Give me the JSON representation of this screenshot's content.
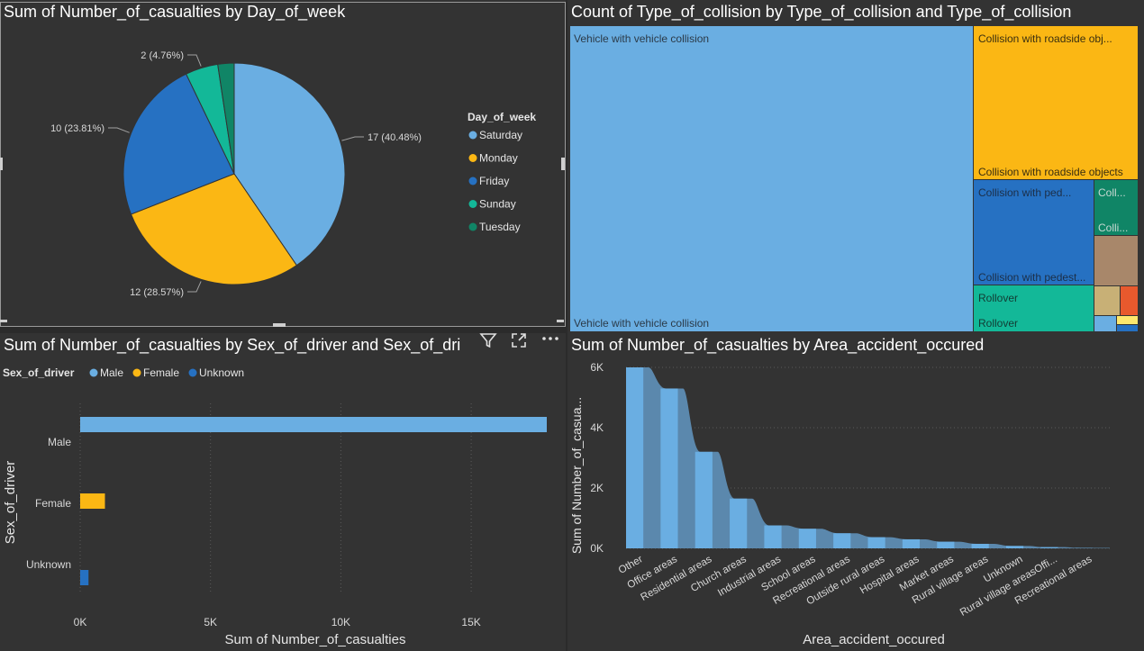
{
  "pie": {
    "title": "Sum of Number_of_casualties by Day_of_week",
    "legend_title": "Day_of_week",
    "slices": [
      {
        "label": "Saturday",
        "value": 17,
        "pct": "40.48%",
        "color": "#6aaee2"
      },
      {
        "label": "Monday",
        "value": 12,
        "pct": "28.57%",
        "color": "#fbb714"
      },
      {
        "label": "Friday",
        "value": 10,
        "pct": "23.81%",
        "color": "#2671c2"
      },
      {
        "label": "Sunday",
        "value": 2,
        "pct": "4.76%",
        "color": "#13b898"
      },
      {
        "label": "Tuesday",
        "value": 1,
        "pct": "",
        "color": "#108566"
      }
    ],
    "data_labels": [
      "17 (40.48%)",
      "12 (28.57%)",
      "10 (23.81%)",
      "2 (4.76%)"
    ]
  },
  "treemap": {
    "title": "Count of Type_of_collision by Type_of_collision and Type_of_collision",
    "labels": {
      "vehicle_top": "Vehicle with vehicle collision",
      "vehicle_bottom": "Vehicle with vehicle collision",
      "roadside_top": "Collision with roadside obj...",
      "roadside_bottom": "Collision with roadside objects",
      "ped_top": "Collision with ped...",
      "ped_bottom": "Collision with pedest...",
      "coll_top": "Coll...",
      "coll_bottom": "Colli...",
      "rollover_top": "Rollover",
      "rollover_bottom": "Rollover"
    },
    "colors": {
      "vehicle": "#6aaee2",
      "roadside": "#fbb714",
      "ped": "#2671c2",
      "coll": "#108566",
      "brown": "#a8876a",
      "tan": "#c8b076",
      "orange": "#e8592d",
      "rollover": "#13b898",
      "yellow": "#fde76d",
      "blue_small": "#6aaee2"
    }
  },
  "bar": {
    "title": "Sum of Number_of_casualties by Sex_of_driver and Sex_of_dri",
    "legend_title": "Sex_of_driver",
    "legend": [
      {
        "label": "Male",
        "color": "#6aaee2"
      },
      {
        "label": "Female",
        "color": "#fbb714"
      },
      {
        "label": "Unknown",
        "color": "#2671c2"
      }
    ],
    "xlabel": "Sum of Number_of_casualties",
    "ylabel": "Sex_of_driver",
    "ticks": [
      "0K",
      "5K",
      "10K",
      "15K"
    ]
  },
  "chart_data": [
    {
      "type": "pie",
      "title": "Sum of Number_of_casualties by Day_of_week",
      "categories": [
        "Saturday",
        "Monday",
        "Friday",
        "Sunday",
        "Tuesday"
      ],
      "values": [
        17,
        12,
        10,
        2,
        1
      ],
      "legend": "right"
    },
    {
      "type": "bar",
      "title": "Sum of Number_of_casualties by Sex_of_driver and Sex_of_dri",
      "categories": [
        "Male",
        "Female",
        "Unknown"
      ],
      "values": [
        17900,
        950,
        320
      ],
      "xlabel": "Sum of Number_of_casualties",
      "ylabel": "Sex_of_driver",
      "xlim": [
        0,
        17900
      ],
      "orientation": "horizontal",
      "legend": "top-left"
    },
    {
      "type": "area",
      "title": "Sum of Number_of_casualties by Area_accident_occured",
      "categories": [
        "Other",
        "Office areas",
        "Residential areas",
        "Church areas",
        "Industrial areas",
        "School areas",
        "Recreational areas",
        "Outside rural areas",
        "Hospital areas",
        "Market areas",
        "Rural village areas",
        "Unknown",
        "Rural village areasOffi...",
        "Recreational areas"
      ],
      "values": [
        6000,
        5300,
        3200,
        1650,
        760,
        650,
        500,
        370,
        300,
        220,
        150,
        80,
        40,
        15
      ],
      "xlabel": "Area_accident_occured",
      "ylabel": "Sum of Number_of_casua...",
      "ylim": [
        0,
        6000
      ],
      "yticks": [
        "0K",
        "2K",
        "4K",
        "6K"
      ]
    }
  ],
  "area": {
    "title": "Sum of Number_of_casualties by Area_accident_occured",
    "xlabel": "Area_accident_occured",
    "ylabel": "Sum of Number_of_casua...",
    "yticks": [
      "0K",
      "2K",
      "4K",
      "6K"
    ]
  }
}
